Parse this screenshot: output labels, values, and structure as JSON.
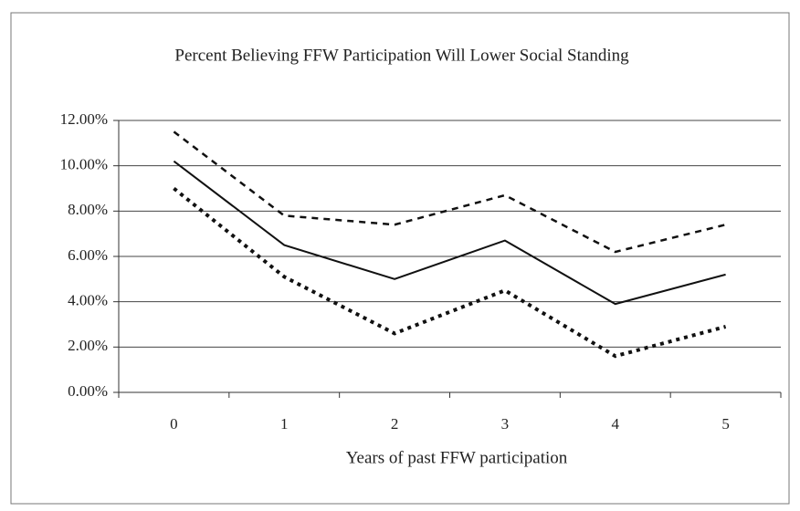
{
  "chart_data": {
    "type": "line",
    "title": "Percent Believing FFW Participation Will Lower Social Standing",
    "x_label": "Years of past FFW participation",
    "categories": [
      "0",
      "1",
      "2",
      "3",
      "4",
      "5"
    ],
    "series": [
      {
        "color": "#111111",
        "dash": "solid",
        "values": [
          10.2,
          6.5,
          5.0,
          6.7,
          3.9,
          5.2
        ]
      },
      {
        "color": "#111111",
        "dash": "dashed",
        "values": [
          11.5,
          7.8,
          7.4,
          8.7,
          6.2,
          7.4
        ]
      },
      {
        "color": "#111111",
        "dash": "dotted",
        "values": [
          9.0,
          5.1,
          2.6,
          4.5,
          1.6,
          2.9
        ]
      }
    ],
    "ylim": [
      0,
      12
    ],
    "yticks": [
      {
        "value": 0,
        "label": "0.00%"
      },
      {
        "value": 2,
        "label": "2.00%"
      },
      {
        "value": 4,
        "label": "4.00%"
      },
      {
        "value": 6,
        "label": "6.00%"
      },
      {
        "value": 8,
        "label": "8.00%"
      },
      {
        "value": 10,
        "label": "10.00%"
      },
      {
        "value": 12,
        "label": "12.00%"
      }
    ],
    "grid": true
  }
}
